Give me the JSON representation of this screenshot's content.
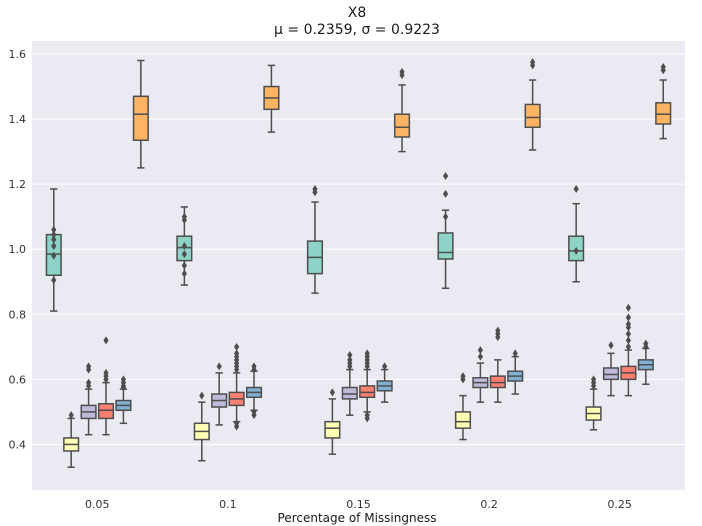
{
  "chart_data": {
    "type": "box",
    "title_line1": "X8",
    "title_line2": "μ = 0.2359, σ = 0.9223",
    "xlabel": "Percentage of Missingness",
    "ylabel": "",
    "ylim": [
      0.26,
      1.64
    ],
    "yticks": [
      "0.4",
      "0.6",
      "0.8",
      "1.0",
      "1.2",
      "1.4",
      "1.6"
    ],
    "categories": [
      "0.05",
      "0.1",
      "0.15",
      "0.2",
      "0.25"
    ],
    "grid": true,
    "legend": "none",
    "series": [
      {
        "name": "series-1",
        "color": "#8dd3c7",
        "boxes": [
          {
            "whislo": 0.81,
            "q1": 0.92,
            "med": 0.985,
            "q3": 1.045,
            "whishi": 1.185,
            "fliers": [
              0.905,
              0.98,
              1.01,
              1.03,
              1.045,
              1.06
            ]
          },
          {
            "whislo": 0.89,
            "q1": 0.965,
            "med": 1.005,
            "q3": 1.04,
            "whishi": 1.13,
            "fliers": [
              0.925,
              0.95,
              0.985,
              1.01,
              1.09,
              1.1
            ]
          },
          {
            "whislo": 0.865,
            "q1": 0.925,
            "med": 0.975,
            "q3": 1.025,
            "whishi": 1.145,
            "fliers": [
              1.175,
              1.185
            ]
          },
          {
            "whislo": 0.88,
            "q1": 0.97,
            "med": 0.99,
            "q3": 1.05,
            "whishi": 1.12,
            "fliers": [
              1.1,
              1.17,
              1.225
            ]
          },
          {
            "whislo": 0.9,
            "q1": 0.965,
            "med": 0.995,
            "q3": 1.04,
            "whishi": 1.14,
            "fliers": [
              0.995,
              1.185
            ]
          }
        ]
      },
      {
        "name": "series-2",
        "color": "#ffffb3",
        "boxes": [
          {
            "whislo": 0.33,
            "q1": 0.38,
            "med": 0.4,
            "q3": 0.42,
            "whishi": 0.48,
            "fliers": [
              0.49
            ]
          },
          {
            "whislo": 0.35,
            "q1": 0.415,
            "med": 0.44,
            "q3": 0.465,
            "whishi": 0.53,
            "fliers": [
              0.55
            ]
          },
          {
            "whislo": 0.37,
            "q1": 0.42,
            "med": 0.45,
            "q3": 0.47,
            "whishi": 0.54,
            "fliers": [
              0.56
            ]
          },
          {
            "whislo": 0.415,
            "q1": 0.45,
            "med": 0.47,
            "q3": 0.5,
            "whishi": 0.55,
            "fliers": [
              0.6,
              0.61
            ]
          },
          {
            "whislo": 0.445,
            "q1": 0.475,
            "med": 0.495,
            "q3": 0.515,
            "whishi": 0.57,
            "fliers": [
              0.58,
              0.59,
              0.6
            ]
          }
        ]
      },
      {
        "name": "series-3",
        "color": "#bebada",
        "boxes": [
          {
            "whislo": 0.43,
            "q1": 0.48,
            "med": 0.5,
            "q3": 0.52,
            "whishi": 0.57,
            "fliers": [
              0.58,
              0.59,
              0.63,
              0.64
            ]
          },
          {
            "whislo": 0.46,
            "q1": 0.515,
            "med": 0.535,
            "q3": 0.555,
            "whishi": 0.62,
            "fliers": [
              0.64
            ]
          },
          {
            "whislo": 0.49,
            "q1": 0.54,
            "med": 0.555,
            "q3": 0.575,
            "whishi": 0.63,
            "fliers": [
              0.64,
              0.65,
              0.66,
              0.675
            ]
          },
          {
            "whislo": 0.53,
            "q1": 0.575,
            "med": 0.59,
            "q3": 0.605,
            "whishi": 0.65,
            "fliers": [
              0.67,
              0.69
            ]
          },
          {
            "whislo": 0.55,
            "q1": 0.6,
            "med": 0.615,
            "q3": 0.635,
            "whishi": 0.68,
            "fliers": [
              0.705
            ]
          }
        ]
      },
      {
        "name": "series-4",
        "color": "#fb8072",
        "boxes": [
          {
            "whislo": 0.43,
            "q1": 0.48,
            "med": 0.505,
            "q3": 0.525,
            "whishi": 0.59,
            "fliers": [
              0.6,
              0.61,
              0.62,
              0.72
            ]
          },
          {
            "whislo": 0.47,
            "q1": 0.52,
            "med": 0.54,
            "q3": 0.56,
            "whishi": 0.62,
            "fliers": [
              0.455,
              0.465,
              0.63,
              0.64,
              0.65,
              0.66,
              0.67,
              0.68,
              0.7
            ]
          },
          {
            "whislo": 0.5,
            "q1": 0.545,
            "med": 0.56,
            "q3": 0.58,
            "whishi": 0.63,
            "fliers": [
              0.48,
              0.49,
              0.64,
              0.65,
              0.66,
              0.67,
              0.68
            ]
          },
          {
            "whislo": 0.53,
            "q1": 0.575,
            "med": 0.59,
            "q3": 0.61,
            "whishi": 0.66,
            "fliers": [
              0.73,
              0.74,
              0.75
            ]
          },
          {
            "whislo": 0.55,
            "q1": 0.6,
            "med": 0.62,
            "q3": 0.64,
            "whishi": 0.69,
            "fliers": [
              0.7,
              0.72,
              0.74,
              0.76,
              0.77,
              0.79,
              0.82
            ]
          }
        ]
      },
      {
        "name": "series-5",
        "color": "#80b1d3",
        "boxes": [
          {
            "whislo": 0.465,
            "q1": 0.505,
            "med": 0.52,
            "q3": 0.535,
            "whishi": 0.57,
            "fliers": [
              0.575,
              0.58,
              0.59,
              0.6
            ]
          },
          {
            "whislo": 0.505,
            "q1": 0.545,
            "med": 0.56,
            "q3": 0.575,
            "whishi": 0.625,
            "fliers": [
              0.49,
              0.5,
              0.63,
              0.64
            ]
          },
          {
            "whislo": 0.53,
            "q1": 0.565,
            "med": 0.58,
            "q3": 0.595,
            "whishi": 0.63,
            "fliers": [
              0.64
            ]
          },
          {
            "whislo": 0.555,
            "q1": 0.595,
            "med": 0.61,
            "q3": 0.625,
            "whishi": 0.67,
            "fliers": [
              0.68
            ]
          },
          {
            "whislo": 0.585,
            "q1": 0.63,
            "med": 0.645,
            "q3": 0.66,
            "whishi": 0.695,
            "fliers": [
              0.7,
              0.71
            ]
          }
        ]
      },
      {
        "name": "series-6",
        "color": "#fdb462",
        "boxes": [
          {
            "whislo": 1.25,
            "q1": 1.335,
            "med": 1.415,
            "q3": 1.47,
            "whishi": 1.58,
            "fliers": []
          },
          {
            "whislo": 1.36,
            "q1": 1.43,
            "med": 1.465,
            "q3": 1.5,
            "whishi": 1.565,
            "fliers": []
          },
          {
            "whislo": 1.3,
            "q1": 1.345,
            "med": 1.375,
            "q3": 1.415,
            "whishi": 1.505,
            "fliers": [
              1.535,
              1.545
            ]
          },
          {
            "whislo": 1.305,
            "q1": 1.375,
            "med": 1.405,
            "q3": 1.445,
            "whishi": 1.52,
            "fliers": [
              1.565,
              1.575
            ]
          },
          {
            "whislo": 1.34,
            "q1": 1.385,
            "med": 1.415,
            "q3": 1.45,
            "whishi": 1.52,
            "fliers": [
              1.55,
              1.56
            ]
          }
        ]
      }
    ]
  }
}
